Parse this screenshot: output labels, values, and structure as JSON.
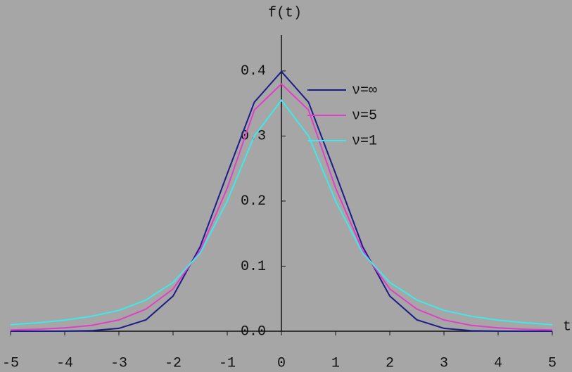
{
  "chart_data": {
    "type": "line",
    "x_label": "t",
    "y_label": "f(t)",
    "x": [
      -5,
      -4.5,
      -4,
      -3.5,
      -3,
      -2.5,
      -2,
      -1.5,
      -1,
      -0.5,
      0,
      0.5,
      1,
      1.5,
      2,
      2.5,
      3,
      3.5,
      4,
      4.5,
      5
    ],
    "series": [
      {
        "name": "ν=∞",
        "color": "#1c1c8a",
        "values": [
          0,
          0,
          0.0001,
          0.0009,
          0.0044,
          0.0175,
          0.054,
          0.13,
          0.242,
          0.352,
          0.399,
          0.352,
          0.242,
          0.13,
          0.054,
          0.0175,
          0.0044,
          0.0009,
          0.0001,
          0,
          0
        ]
      },
      {
        "name": "ν=5",
        "color": "#e040c8",
        "values": [
          0.0018,
          0.0029,
          0.0051,
          0.0091,
          0.0173,
          0.034,
          0.065,
          0.124,
          0.22,
          0.34,
          0.38,
          0.34,
          0.22,
          0.124,
          0.065,
          0.034,
          0.0173,
          0.0091,
          0.0051,
          0.0029,
          0.0018
        ]
      },
      {
        "name": "ν=1",
        "color": "#40e8e8",
        "values": [
          0.01,
          0.013,
          0.017,
          0.023,
          0.032,
          0.048,
          0.075,
          0.12,
          0.2,
          0.3,
          0.355,
          0.3,
          0.2,
          0.12,
          0.075,
          0.048,
          0.032,
          0.023,
          0.017,
          0.013,
          0.01
        ]
      }
    ],
    "xlim": [
      -5,
      5
    ],
    "xticks": [
      -5,
      -4,
      -3,
      -2,
      -1,
      0,
      1,
      2,
      3,
      4,
      5
    ],
    "ylim": [
      0,
      0.455
    ],
    "yticks": [
      {
        "value": 0,
        "label": "0.0"
      },
      0.1,
      0.2,
      0.3,
      0.4
    ],
    "grid": false,
    "legend": "top-right"
  }
}
